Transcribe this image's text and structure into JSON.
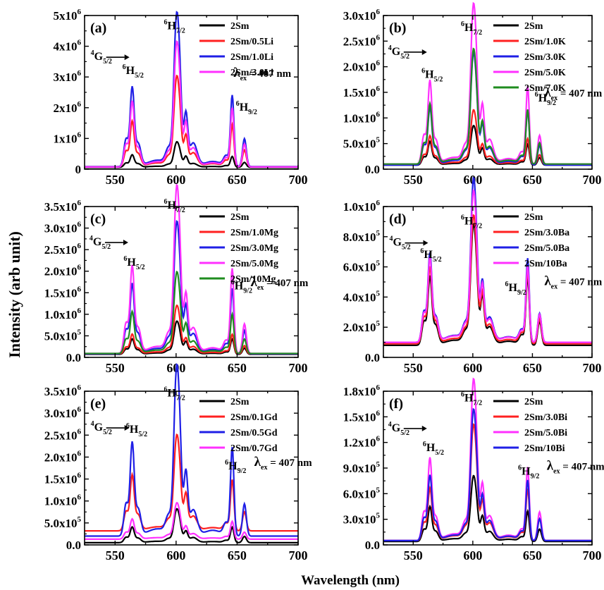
{
  "figure": {
    "ylabel": "Intensity (arb unit)",
    "xlabel": "Wavelength (nm)"
  },
  "chart_data": [
    {
      "type": "line",
      "panel_label": "(a)",
      "xlim": [
        525,
        700
      ],
      "xticks": [
        550,
        600,
        650,
        700
      ],
      "ylim": [
        0,
        5000000
      ],
      "yticks": [
        {
          "value": 0,
          "mant": "0",
          "exp": ""
        },
        {
          "value": 1000000,
          "mant": "1x10",
          "exp": "6"
        },
        {
          "value": 2000000,
          "mant": "2x10",
          "exp": "6"
        },
        {
          "value": 3000000,
          "mant": "3x10",
          "exp": "6"
        },
        {
          "value": 4000000,
          "mant": "4x10",
          "exp": "6"
        },
        {
          "value": 5000000,
          "mant": "5x10",
          "exp": "6"
        }
      ],
      "excitation": {
        "text": "λ",
        "sub": "ex",
        "tail": " = 407 nm",
        "x": 647,
        "y": 3000000
      },
      "transitions": [
        {
          "pre": "4",
          "main": "G",
          "sub": "5/2",
          "x": 530,
          "y": 3550000,
          "arrow": true
        },
        {
          "pre": "6",
          "main": "H",
          "sub": "5/2",
          "x": 556,
          "y": 3100000
        },
        {
          "pre": "6",
          "main": "H",
          "sub": "7/2",
          "x": 590,
          "y": 4550000
        },
        {
          "pre": "6",
          "main": "H",
          "sub": "9/2",
          "x": 649,
          "y": 1900000
        }
      ],
      "series": [
        {
          "name": "2Sm",
          "color": "#000000",
          "baseline": 60000,
          "peaks": [
            400000.0,
            700000.0,
            550000.0,
            350000.0,
            500000.0
          ]
        },
        {
          "name": "2Sm/0.5Li",
          "color": "#ff2020",
          "baseline": 80000,
          "peaks": [
            1450000.0,
            2500000.0,
            1550000.0,
            1350000.0,
            1700000.0
          ]
        },
        {
          "name": "2Sm/1.0Li",
          "color": "#1f1fe6",
          "baseline": 80000,
          "peaks": [
            2550000.0,
            4250000.0,
            2650000.0,
            2300000.0,
            2850000.0
          ]
        },
        {
          "name": "2Sm/3.0Li",
          "color": "#ff30ff",
          "baseline": 70000,
          "peaks": [
            2100000.0,
            3450000.0,
            2200000.0,
            1900000.0,
            2350000.0
          ]
        }
      ]
    },
    {
      "type": "line",
      "panel_label": "(b)",
      "xlim": [
        525,
        700
      ],
      "xticks": [
        550,
        600,
        650,
        700
      ],
      "ylim": [
        0,
        3000000
      ],
      "yticks": [
        {
          "value": 0,
          "mant": "0.0",
          "exp": ""
        },
        {
          "value": 500000,
          "mant": "5.0x10",
          "exp": "5"
        },
        {
          "value": 1000000,
          "mant": "1.0x10",
          "exp": "6"
        },
        {
          "value": 1500000,
          "mant": "1.5x10",
          "exp": "6"
        },
        {
          "value": 2000000,
          "mant": "2.0x10",
          "exp": "6"
        },
        {
          "value": 2500000,
          "mant": "2.5x10",
          "exp": "6"
        },
        {
          "value": 3000000,
          "mant": "3.0x10",
          "exp": "6"
        }
      ],
      "excitation": {
        "text": "λ",
        "sub": "ex",
        "tail": " = 407 nm",
        "x": 660,
        "y": 1420000
      },
      "transitions": [
        {
          "pre": "4",
          "main": "G",
          "sub": "5/2",
          "x": 529,
          "y": 2230000,
          "arrow": true
        },
        {
          "pre": "6",
          "main": "H",
          "sub": "5/2",
          "x": 557,
          "y": 1780000
        },
        {
          "pre": "6",
          "main": "H",
          "sub": "7/2",
          "x": 590,
          "y": 2700000
        },
        {
          "pre": "6",
          "main": "H",
          "sub": "9/2",
          "x": 652,
          "y": 1320000
        }
      ],
      "series": [
        {
          "name": "2Sm",
          "color": "#000000",
          "baseline": 80000,
          "peaks": [
            450000.0,
            650000.0,
            500000.0,
            400000.0,
            450000.0
          ]
        },
        {
          "name": "2Sm/1.0K",
          "color": "#ff2020",
          "baseline": 90000,
          "peaks": [
            550000.0,
            900000.0,
            600000.0,
            500000.0,
            600000.0
          ]
        },
        {
          "name": "2Sm/3.0K",
          "color": "#1f1fe6",
          "baseline": 80000,
          "peaks": [
            1100000.0,
            1850000.0,
            1200000.0,
            1050000.0,
            1200000.0
          ]
        },
        {
          "name": "2Sm/5.0K",
          "color": "#ff30ff",
          "baseline": 100000,
          "peaks": [
            1600000.0,
            2650000.0,
            1750000.0,
            1500000.0,
            1750000.0
          ]
        },
        {
          "name": "2Sm/7.0K",
          "color": "#1f8c1f",
          "baseline": 100000,
          "peaks": [
            1150000.0,
            1900000.0,
            1250000.0,
            1050000.0,
            1300000.0
          ]
        }
      ]
    },
    {
      "type": "line",
      "panel_label": "(c)",
      "xlim": [
        525,
        700
      ],
      "xticks": [
        550,
        600,
        650,
        700
      ],
      "ylim": [
        0,
        3500000
      ],
      "yticks": [
        {
          "value": 0,
          "mant": "0.0",
          "exp": ""
        },
        {
          "value": 500000,
          "mant": "5.0x10",
          "exp": "5"
        },
        {
          "value": 1000000,
          "mant": "1.0x10",
          "exp": "6"
        },
        {
          "value": 1500000,
          "mant": "1.5x10",
          "exp": "6"
        },
        {
          "value": 2000000,
          "mant": "2.0x10",
          "exp": "6"
        },
        {
          "value": 2500000,
          "mant": "2.5x10",
          "exp": "6"
        },
        {
          "value": 3000000,
          "mant": "3.0x10",
          "exp": "6"
        },
        {
          "value": 3500000,
          "mant": "3.5x10",
          "exp": "6"
        }
      ],
      "excitation": {
        "text": "λ",
        "sub": "ex",
        "tail": " = 407 nm",
        "x": 661,
        "y": 1650000
      },
      "transitions": [
        {
          "pre": "4",
          "main": "G",
          "sub": "5/2",
          "x": 529,
          "y": 2600000,
          "arrow": true
        },
        {
          "pre": "6",
          "main": "H",
          "sub": "5/2",
          "x": 557,
          "y": 2130000
        },
        {
          "pre": "6",
          "main": "H",
          "sub": "7/2",
          "x": 590,
          "y": 3450000
        },
        {
          "pre": "6",
          "main": "H",
          "sub": "9/2",
          "x": 645,
          "y": 1580000
        }
      ],
      "series": [
        {
          "name": "2Sm",
          "color": "#000000",
          "baseline": 70000,
          "peaks": [
            350000.0,
            650000.0,
            450000.0,
            350000.0,
            450000.0
          ]
        },
        {
          "name": "2Sm/1.0Mg",
          "color": "#ff2020",
          "baseline": 80000,
          "peaks": [
            450000.0,
            950000.0,
            550000.0,
            450000.0,
            600000.0
          ]
        },
        {
          "name": "2Sm/3.0Mg",
          "color": "#1f1fe6",
          "baseline": 80000,
          "peaks": [
            1600000.0,
            2600000.0,
            1700000.0,
            1500000.0,
            1700000.0
          ]
        },
        {
          "name": "2Sm/5.0Mg",
          "color": "#ff30ff",
          "baseline": 90000,
          "peaks": [
            2000000.0,
            3300000.0,
            2100000.0,
            1950000.0,
            2150000.0
          ]
        },
        {
          "name": "2Sm/10Mg",
          "color": "#1f8c1f",
          "baseline": 90000,
          "peaks": [
            950000.0,
            1600000.0,
            1050000.0,
            900000.0,
            1050000.0
          ]
        }
      ]
    },
    {
      "type": "line",
      "panel_label": "(d)",
      "xlim": [
        525,
        700
      ],
      "xticks": [
        550,
        600,
        650,
        700
      ],
      "ylim": [
        0,
        1000000
      ],
      "yticks": [
        {
          "value": 0,
          "mant": "0.0",
          "exp": ""
        },
        {
          "value": 200000,
          "mant": "2.0x10",
          "exp": "5"
        },
        {
          "value": 400000,
          "mant": "4.0x10",
          "exp": "5"
        },
        {
          "value": 600000,
          "mant": "6.0x10",
          "exp": "5"
        },
        {
          "value": 800000,
          "mant": "8.0x10",
          "exp": "5"
        },
        {
          "value": 1000000,
          "mant": "1.0x10",
          "exp": "6"
        }
      ],
      "excitation": {
        "text": "λ",
        "sub": "ex",
        "tail": " = 407 nm",
        "x": 660,
        "y": 480000
      },
      "transitions": [
        {
          "pre": "4",
          "main": "G",
          "sub": "5/2",
          "x": 530,
          "y": 740000,
          "arrow": true
        },
        {
          "pre": "6",
          "main": "H",
          "sub": "5/2",
          "x": 556,
          "y": 660000
        },
        {
          "pre": "6",
          "main": "H",
          "sub": "7/2",
          "x": 590,
          "y": 880000
        },
        {
          "pre": "6",
          "main": "H",
          "sub": "9/2",
          "x": 627,
          "y": 440000
        }
      ],
      "series": [
        {
          "name": "2Sm",
          "color": "#000000",
          "baseline": 80000,
          "peaks": [
            450000.0,
            680000.0,
            500000.0,
            450000.0,
            500000.0
          ]
        },
        {
          "name": "2Sm/3.0Ba",
          "color": "#ff2020",
          "baseline": 90000,
          "peaks": [
            500000.0,
            720000.0,
            520000.0,
            480000.0,
            520000.0
          ]
        },
        {
          "name": "2Sm/5.0Ba",
          "color": "#1f1fe6",
          "baseline": 100000,
          "peaks": [
            580000.0,
            920000.0,
            620000.0,
            550000.0,
            600000.0
          ]
        },
        {
          "name": "2Sm/10Ba",
          "color": "#ff30ff",
          "baseline": 100000,
          "peaks": [
            550000.0,
            850000.0,
            580000.0,
            500000.0,
            580000.0
          ]
        }
      ]
    },
    {
      "type": "line",
      "panel_label": "(e)",
      "xlim": [
        525,
        700
      ],
      "xticks": [
        550,
        600,
        650,
        700
      ],
      "ylim": [
        0,
        3500000
      ],
      "yticks": [
        {
          "value": 0,
          "mant": "0.0",
          "exp": ""
        },
        {
          "value": 500000,
          "mant": "5.0x10",
          "exp": "5"
        },
        {
          "value": 1000000,
          "mant": "1.0x10",
          "exp": "6"
        },
        {
          "value": 1500000,
          "mant": "1.5x10",
          "exp": "6"
        },
        {
          "value": 2000000,
          "mant": "2.0x10",
          "exp": "6"
        },
        {
          "value": 2500000,
          "mant": "2.5x10",
          "exp": "6"
        },
        {
          "value": 3000000,
          "mant": "3.0x10",
          "exp": "6"
        },
        {
          "value": 3500000,
          "mant": "3.5x10",
          "exp": "6"
        }
      ],
      "excitation": {
        "text": "λ",
        "sub": "ex",
        "tail": " = 407 nm",
        "x": 664,
        "y": 1800000
      },
      "transitions": [
        {
          "pre": "4",
          "main": "G",
          "sub": "5/2",
          "x": 530,
          "y": 2600000,
          "arrow": true
        },
        {
          "pre": "6",
          "main": "H",
          "sub": "5/2",
          "x": 559,
          "y": 2550000
        },
        {
          "pre": "6",
          "main": "H",
          "sub": "7/2",
          "x": 590,
          "y": 3380000
        },
        {
          "pre": "6",
          "main": "H",
          "sub": "9/2",
          "x": 640,
          "y": 1720000
        }
      ],
      "series": [
        {
          "name": "2Sm",
          "color": "#000000",
          "baseline": 50000,
          "peaks": [
            350000.0,
            650000.0,
            400000.0,
            350000.0,
            450000.0
          ]
        },
        {
          "name": "2Sm/0.1Gd",
          "color": "#ff2020",
          "baseline": 320000,
          "peaks": [
            1250000.0,
            1850000.0,
            1300000.0,
            1150000.0,
            1350000.0
          ]
        },
        {
          "name": "2Sm/0.5Gd",
          "color": "#1f1fe6",
          "baseline": 200000,
          "peaks": [
            2100000.0,
            3300000.0,
            2250000.0,
            2000000.0,
            2300000.0
          ]
        },
        {
          "name": "2Sm/0.7Gd",
          "color": "#ff30ff",
          "baseline": 130000,
          "peaks": [
            450000.0,
            700000.0,
            450000.0,
            400000.0,
            500000.0
          ]
        }
      ]
    },
    {
      "type": "line",
      "panel_label": "(f)",
      "xlim": [
        525,
        700
      ],
      "xticks": [
        550,
        600,
        650,
        700
      ],
      "ylim": [
        0,
        1800000
      ],
      "yticks": [
        {
          "value": 0,
          "mant": "0.0",
          "exp": ""
        },
        {
          "value": 300000,
          "mant": "3.0x10",
          "exp": "5"
        },
        {
          "value": 600000,
          "mant": "6.0x10",
          "exp": "5"
        },
        {
          "value": 900000,
          "mant": "9.0x10",
          "exp": "5"
        },
        {
          "value": 1200000,
          "mant": "1.2x10",
          "exp": "6"
        },
        {
          "value": 1500000,
          "mant": "1.5x10",
          "exp": "6"
        },
        {
          "value": 1800000,
          "mant": "1.8x10",
          "exp": "6"
        }
      ],
      "excitation": {
        "text": "λ",
        "sub": "ex",
        "tail": " = 407 nm",
        "x": 662,
        "y": 880000
      },
      "transitions": [
        {
          "pre": "4",
          "main": "G",
          "sub": "5/2",
          "x": 529,
          "y": 1330000,
          "arrow": true
        },
        {
          "pre": "6",
          "main": "H",
          "sub": "5/2",
          "x": 558,
          "y": 1100000
        },
        {
          "pre": "6",
          "main": "H",
          "sub": "7/2",
          "x": 590,
          "y": 1680000
        },
        {
          "pre": "6",
          "main": "H",
          "sub": "9/2",
          "x": 638,
          "y": 820000
        }
      ],
      "series": [
        {
          "name": "2Sm",
          "color": "#000000",
          "baseline": 40000,
          "peaks": [
            400000.0,
            650000.0,
            450000.0,
            350000.0,
            450000.0
          ]
        },
        {
          "name": "2Sm/3.0Bi",
          "color": "#ff2020",
          "baseline": 50000,
          "peaks": [
            600000.0,
            1150000.0,
            700000.0,
            600000.0,
            800000.0
          ]
        },
        {
          "name": "2Sm/5.0Bi",
          "color": "#ff30ff",
          "baseline": 50000,
          "peaks": [
            950000.0,
            1600000.0,
            1000000.0,
            850000.0,
            1050000.0
          ]
        },
        {
          "name": "2Sm/10Bi",
          "color": "#1f1fe6",
          "baseline": 50000,
          "peaks": [
            750000.0,
            1300000.0,
            800000.0,
            700000.0,
            800000.0
          ]
        }
      ]
    }
  ]
}
